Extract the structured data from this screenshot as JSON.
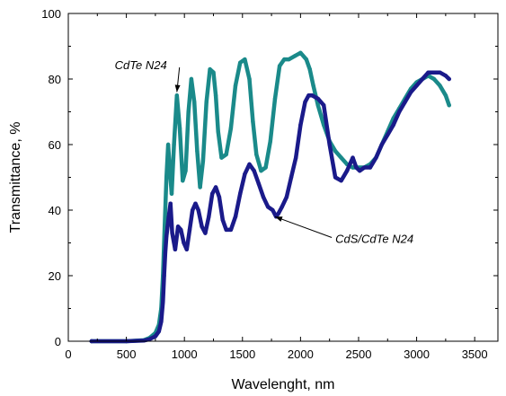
{
  "chart_data": {
    "type": "line",
    "title": "",
    "xlabel": "Wavelenght, nm",
    "ylabel": "Transmittance, %",
    "xlim": [
      0,
      3700
    ],
    "ylim": [
      0,
      100
    ],
    "xticks": [
      0,
      500,
      1000,
      1500,
      2000,
      2500,
      3000,
      3500
    ],
    "yticks": [
      0,
      20,
      40,
      60,
      80,
      100
    ],
    "grid": false,
    "legend": "none",
    "series": [
      {
        "name": "CdTe N24",
        "color": "#1a8a8a",
        "x": [
          200,
          500,
          650,
          700,
          750,
          780,
          800,
          815,
          830,
          845,
          860,
          875,
          890,
          910,
          935,
          960,
          985,
          1010,
          1035,
          1060,
          1085,
          1110,
          1135,
          1160,
          1190,
          1220,
          1250,
          1270,
          1290,
          1320,
          1360,
          1400,
          1440,
          1480,
          1520,
          1560,
          1590,
          1620,
          1660,
          1700,
          1740,
          1780,
          1820,
          1860,
          1900,
          1950,
          2000,
          2050,
          2080,
          2110,
          2150,
          2200,
          2250,
          2300,
          2350,
          2400,
          2450,
          2500,
          2550,
          2600,
          2650,
          2700,
          2750,
          2800,
          2850,
          2900,
          2950,
          3000,
          3050,
          3100,
          3150,
          3200,
          3250,
          3280
        ],
        "y": [
          0,
          0,
          0.3,
          1,
          2.5,
          5,
          10,
          20,
          35,
          50,
          60,
          52,
          45,
          60,
          75,
          65,
          49,
          52,
          70,
          80,
          73,
          58,
          47,
          55,
          73,
          83,
          82,
          75,
          64,
          56,
          57,
          65,
          78,
          85,
          86,
          80,
          67,
          57,
          52,
          53,
          61,
          74,
          84,
          86,
          86,
          87,
          88,
          86,
          83,
          78,
          72,
          66,
          61,
          58,
          56,
          54,
          53,
          53,
          53,
          54,
          56,
          60,
          64,
          68,
          71,
          74,
          77,
          79,
          80,
          81,
          80,
          78,
          75,
          72
        ]
      },
      {
        "name": "CdS/CdTe N24",
        "color": "#1a1a8a",
        "x": [
          200,
          500,
          650,
          700,
          750,
          780,
          800,
          815,
          825,
          835,
          845,
          855,
          865,
          880,
          895,
          920,
          945,
          970,
          995,
          1020,
          1045,
          1070,
          1095,
          1120,
          1150,
          1180,
          1210,
          1240,
          1270,
          1300,
          1330,
          1360,
          1400,
          1440,
          1480,
          1520,
          1560,
          1600,
          1640,
          1680,
          1720,
          1760,
          1790,
          1810,
          1840,
          1880,
          1920,
          1960,
          2000,
          2040,
          2070,
          2100,
          2150,
          2200,
          2250,
          2300,
          2350,
          2400,
          2450,
          2480,
          2510,
          2550,
          2600,
          2650,
          2700,
          2750,
          2800,
          2850,
          2900,
          2950,
          3000,
          3050,
          3100,
          3150,
          3200,
          3250,
          3280
        ],
        "y": [
          0,
          0,
          0.2,
          0.6,
          1.5,
          3,
          6,
          12,
          20,
          27,
          32,
          35,
          38,
          42,
          33,
          28,
          35,
          34,
          30,
          28,
          34,
          40,
          42,
          40,
          35,
          33,
          38,
          45,
          47,
          44,
          37,
          34,
          34,
          38,
          45,
          51,
          54,
          52,
          48,
          44,
          41,
          40,
          38,
          39,
          41,
          44,
          50,
          56,
          66,
          73,
          75,
          75,
          74,
          72,
          60,
          50,
          49,
          52,
          56,
          53,
          52,
          53,
          53,
          56,
          60,
          63,
          66,
          70,
          73,
          76,
          78,
          80,
          82,
          82,
          82,
          81,
          80
        ]
      }
    ],
    "annotations": [
      {
        "text": "CdTe N24",
        "series": "CdTe N24",
        "at_x": 935,
        "at_y": 76,
        "label_x": 400,
        "label_y": 83
      },
      {
        "text": "CdS/CdTe N24",
        "series": "CdS/CdTe N24",
        "at_x": 1780,
        "at_y": 38,
        "label_x": 2300,
        "label_y": 30
      }
    ]
  }
}
